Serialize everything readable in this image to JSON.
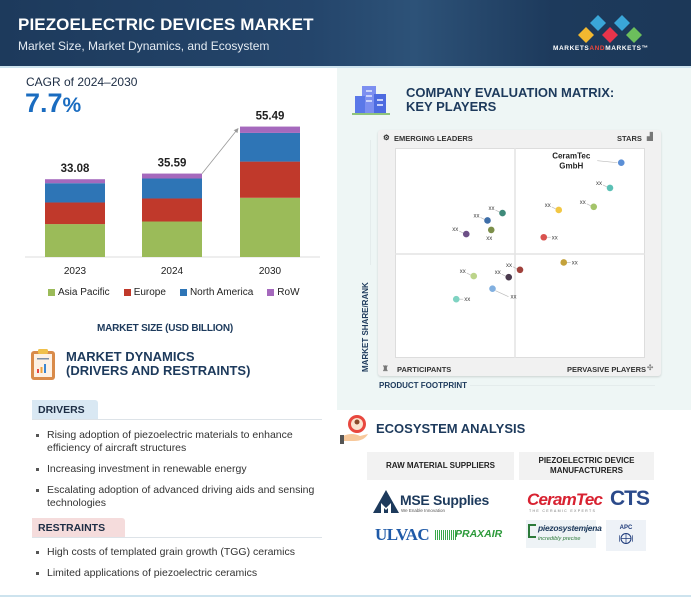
{
  "header": {
    "title": "PIEZOELECTRIC DEVICES MARKET",
    "subtitle": "Market Size, Market Dynamics, and Ecosystem",
    "brand_pre": "MARKETS",
    "brand_and": "AND",
    "brand_post": "MARKETS",
    "brand_tm": "™"
  },
  "cagr": {
    "label": "CAGR of 2024–2030",
    "value": "7.7",
    "unit": "%"
  },
  "chart_data": {
    "type": "bar",
    "stacked": true,
    "title": "MARKET SIZE (USD BILLION)",
    "xlabel": "",
    "ylabel": "",
    "categories": [
      "2023",
      "2024",
      "2030"
    ],
    "totals": [
      "33.08",
      "35.59",
      "55.49"
    ],
    "series": [
      {
        "name": "Asia Pacific",
        "color": "#9bbb59",
        "values": [
          14.0,
          15.1,
          25.2
        ]
      },
      {
        "name": "Europe",
        "color": "#c0392b",
        "values": [
          9.2,
          9.8,
          15.4
        ]
      },
      {
        "name": "North America",
        "color": "#2e75b6",
        "values": [
          8.2,
          8.5,
          12.2
        ]
      },
      {
        "name": "RoW",
        "color": "#a569bd",
        "values": [
          1.7,
          2.1,
          2.7
        ]
      }
    ],
    "ylim": [
      0,
      60
    ],
    "grid": false,
    "legend": "bottom"
  },
  "market_dynamics": {
    "title_line1": "MARKET DYNAMICS",
    "title_line2": "(DRIVERS AND RESTRAINTS)",
    "drivers_label": "DRIVERS",
    "drivers": [
      "Rising adoption of piezoelectric materials to enhance efficiency of aircraft structures",
      "Increasing investment in renewable energy",
      "Escalating adoption of advanced driving aids and sensing technologies"
    ],
    "restraints_label": "RESTRAINTS",
    "restraints": [
      "High costs of templated grain growth (TGG) ceramics",
      "Limited applications of piezoelectric ceramics"
    ]
  },
  "evaluation_matrix": {
    "title_line1": "COMPANY EVALUATION MATRIX:",
    "title_line2": "KEY PLAYERS",
    "quadrants": {
      "top_left": "EMERGING LEADERS",
      "top_right": "STARS",
      "bottom_left": "PARTICIPANTS",
      "bottom_right": "PERVASIVE PLAYERS"
    },
    "y_axis": "MARKET SHARE/RANK",
    "x_axis": "PRODUCT FOOTPRINT",
    "points": [
      {
        "label": "CeramTec GmbH",
        "footprint": 0.905,
        "share": 0.93,
        "color": "#5b8fd6"
      },
      {
        "label": "xx",
        "footprint": 0.86,
        "share": 0.81,
        "color": "#5bc0b5"
      },
      {
        "label": "xx",
        "footprint": 0.795,
        "share": 0.72,
        "color": "#a4c46a"
      },
      {
        "label": "xx",
        "footprint": 0.655,
        "share": 0.705,
        "color": "#f2c744"
      },
      {
        "label": "xx",
        "footprint": 0.595,
        "share": 0.575,
        "color": "#d9534f"
      },
      {
        "label": "xx",
        "footprint": 0.43,
        "share": 0.69,
        "color": "#3f8a7a"
      },
      {
        "label": "xx",
        "footprint": 0.37,
        "share": 0.655,
        "color": "#3e6ea8"
      },
      {
        "label": "xx",
        "footprint": 0.385,
        "share": 0.61,
        "color": "#7c8f4a"
      },
      {
        "label": "xx",
        "footprint": 0.285,
        "share": 0.59,
        "color": "#6c4f86"
      },
      {
        "label": "xx",
        "footprint": 0.675,
        "share": 0.455,
        "color": "#c4a23b"
      },
      {
        "label": "xx",
        "footprint": 0.5,
        "share": 0.42,
        "color": "#a0413b"
      },
      {
        "label": "xx",
        "footprint": 0.455,
        "share": 0.385,
        "color": "#4a3a4e"
      },
      {
        "label": "xx",
        "footprint": 0.315,
        "share": 0.39,
        "color": "#bcd48a"
      },
      {
        "label": "xx",
        "footprint": 0.39,
        "share": 0.33,
        "color": "#82b0e0"
      },
      {
        "label": "xx",
        "footprint": 0.245,
        "share": 0.28,
        "color": "#7fd3c2"
      }
    ]
  },
  "ecosystem": {
    "title": "ECOSYSTEM ANALYSIS",
    "raw_header": "RAW MATERIAL SUPPLIERS",
    "pdm_header": "PIEZOELECTRIC DEVICE MANUFACTURERS",
    "raw_logos": {
      "mse": "MSE Supplies",
      "mse_tag": "We Enable Innovation",
      "ulvac": "ULVAC",
      "praxair": "PRAXAIR"
    },
    "pdm_logos": {
      "ceramtec": "CeramTec",
      "ceramtec_tag": "THE CERAMIC EXPERTS",
      "cts": "CTS",
      "piezo": "piezosystemjena",
      "piezo_tag": "incredibly precise",
      "apc": "APC"
    }
  }
}
